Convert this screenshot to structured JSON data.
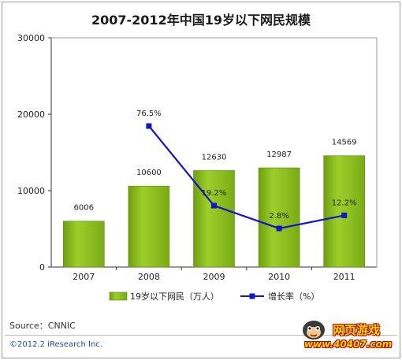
{
  "chart_data": {
    "type": "bar",
    "title": "2007-2012年中国19岁以下网民规模",
    "categories": [
      "2007",
      "2008",
      "2009",
      "2010",
      "2011"
    ],
    "series": [
      {
        "name": "19岁以下网民（万人）",
        "type": "bar",
        "axis": "left",
        "values": [
          6006,
          10600,
          12630,
          12987,
          14569
        ]
      },
      {
        "name": "增长率（%）",
        "type": "line",
        "axis": "right",
        "values": [
          null,
          76.5,
          19.2,
          2.8,
          12.2
        ]
      }
    ],
    "bar_labels": [
      "6006",
      "10600",
      "12630",
      "12987",
      "14569"
    ],
    "line_labels": [
      "",
      "76.5%",
      "19.2%",
      "2.8%",
      "12.2%"
    ],
    "yticks": [
      "0",
      "10000",
      "20000",
      "30000"
    ],
    "ylim": [
      0,
      30000
    ],
    "legend_position": "bottom",
    "colors": {
      "bar": "#8dc21f",
      "bar_dark": "#5c8a0c",
      "line": "#1414c8"
    }
  },
  "source": "Source：CNNIC",
  "copyright": "©2012.2 iResearch Inc.",
  "watermark": {
    "brand": "网页游戏",
    "url": "www.40407.com"
  }
}
